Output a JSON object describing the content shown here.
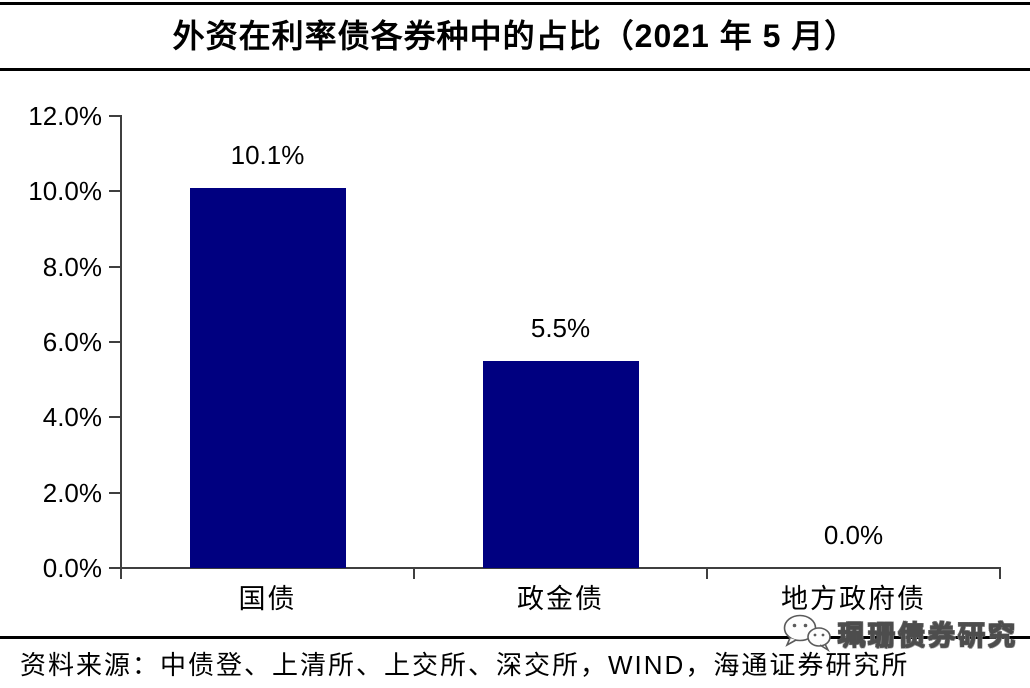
{
  "chart_data": {
    "type": "bar",
    "title": "外资在利率债各券种中的占比（2021 年 5 月）",
    "categories": [
      "国债",
      "政金债",
      "地方政府债"
    ],
    "values": [
      10.1,
      5.5,
      0.0
    ],
    "data_labels": [
      "10.1%",
      "5.5%",
      "0.0%"
    ],
    "xlabel": "",
    "ylabel": "",
    "ylim": [
      0,
      12
    ],
    "ytick_step": 2,
    "ytick_labels": [
      "0.0%",
      "2.0%",
      "4.0%",
      "6.0%",
      "8.0%",
      "10.0%",
      "12.0%"
    ],
    "grid": false,
    "legend": "none",
    "bar_color": "#000080",
    "axis_color": "#3f3f3f"
  },
  "footer": {
    "source": "资料来源：中债登、上清所、上交所、深交所，WIND，海通证券研究所"
  },
  "watermark": {
    "icon": "wechat-icon",
    "text": "珮珊债券研究"
  }
}
